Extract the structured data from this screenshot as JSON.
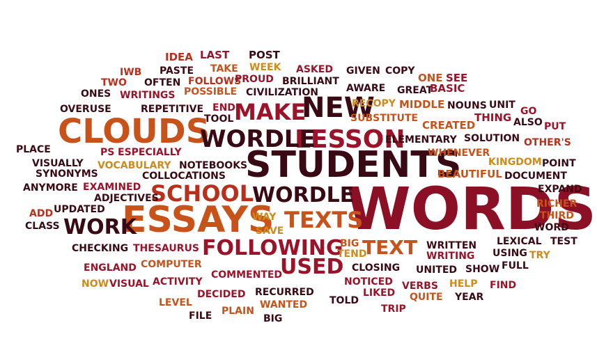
{
  "palette": {
    "dark_maroon": "#3a0a14",
    "maroon": "#6e0f22",
    "crimson": "#9a1328",
    "brick": "#b8301c",
    "burnt_orange": "#c8531a",
    "orange": "#d6701c",
    "gold": "#d08a1a"
  },
  "words": [
    {
      "text": "WORDS",
      "color": "#8b1025"
    },
    {
      "text": "STUDENTS",
      "color": "#3a0a14"
    },
    {
      "text": "ESSAYS",
      "color": "#c8531a"
    },
    {
      "text": "CLOUDS",
      "color": "#c8531a"
    },
    {
      "text": "NEW",
      "color": "#3a0a14"
    },
    {
      "text": "LESSON",
      "color": "#9a1328"
    },
    {
      "text": "WORDLE",
      "color": "#3a0a14"
    },
    {
      "text": "MAKE",
      "color": "#9a1328"
    },
    {
      "text": "SCHOOL",
      "color": "#b8301c"
    },
    {
      "text": "WORDLE",
      "color": "#3a0a14"
    },
    {
      "text": "TEXTS",
      "color": "#c8531a"
    },
    {
      "text": "WORK",
      "color": "#3a0a14"
    },
    {
      "text": "FOLLOWING",
      "color": "#9a1328"
    },
    {
      "text": "TEXT",
      "color": "#c8531a"
    },
    {
      "text": "USED",
      "color": "#9a1328"
    },
    {
      "text": "POST",
      "color": "#3a0a14"
    },
    {
      "text": "IDEA",
      "color": "#b8301c"
    },
    {
      "text": "LAST",
      "color": "#9a1328"
    },
    {
      "text": "WEEK",
      "color": "#d08a1a"
    },
    {
      "text": "IWB",
      "color": "#b8301c"
    },
    {
      "text": "PASTE",
      "color": "#3a0a14"
    },
    {
      "text": "TAKE",
      "color": "#c8531a"
    },
    {
      "text": "ASKED",
      "color": "#9a1328"
    },
    {
      "text": "GIVEN",
      "color": "#3a0a14"
    },
    {
      "text": "COPY",
      "color": "#3a0a14"
    },
    {
      "text": "TWO",
      "color": "#b8301c"
    },
    {
      "text": "OFTEN",
      "color": "#3a0a14"
    },
    {
      "text": "FOLLOWS",
      "color": "#b8301c"
    },
    {
      "text": "PROUD",
      "color": "#9a1328"
    },
    {
      "text": "BRILLIANT",
      "color": "#3a0a14"
    },
    {
      "text": "ONE",
      "color": "#c8531a"
    },
    {
      "text": "SEE",
      "color": "#9a1328"
    },
    {
      "text": "AWARE",
      "color": "#3a0a14"
    },
    {
      "text": "ONES",
      "color": "#3a0a14"
    },
    {
      "text": "WRITINGS",
      "color": "#9a1328"
    },
    {
      "text": "POSSIBLE",
      "color": "#c8531a"
    },
    {
      "text": "CIVILIZATION",
      "color": "#3a0a14"
    },
    {
      "text": "GREAT",
      "color": "#3a0a14"
    },
    {
      "text": "BASIC",
      "color": "#9a1328"
    },
    {
      "text": "OVERUSE",
      "color": "#3a0a14"
    },
    {
      "text": "REPETITIVE",
      "color": "#3a0a14"
    },
    {
      "text": "END",
      "color": "#9a1328"
    },
    {
      "text": "RECOPY",
      "color": "#d08a1a"
    },
    {
      "text": "MIDDLE",
      "color": "#c8531a"
    },
    {
      "text": "NOUNS",
      "color": "#3a0a14"
    },
    {
      "text": "UNIT",
      "color": "#3a0a14"
    },
    {
      "text": "GO",
      "color": "#9a1328"
    },
    {
      "text": "TOOL",
      "color": "#3a0a14"
    },
    {
      "text": "SUBSTITUTE",
      "color": "#c8531a"
    },
    {
      "text": "THING",
      "color": "#9a1328"
    },
    {
      "text": "ALSO",
      "color": "#3a0a14"
    },
    {
      "text": "CREATED",
      "color": "#c8531a"
    },
    {
      "text": "PUT",
      "color": "#9a1328"
    },
    {
      "text": "ELEMENTARY",
      "color": "#3a0a14"
    },
    {
      "text": "SOLUTION",
      "color": "#3a0a14"
    },
    {
      "text": "OTHER'S",
      "color": "#b8301c"
    },
    {
      "text": "PLACE",
      "color": "#3a0a14"
    },
    {
      "text": "PS",
      "color": "#9a1328"
    },
    {
      "text": "ESPECIALLY",
      "color": "#9a1328"
    },
    {
      "text": "WHENEVER",
      "color": "#c8531a"
    },
    {
      "text": "VISUALLY",
      "color": "#3a0a14"
    },
    {
      "text": "VOCABULARY",
      "color": "#d08a1a"
    },
    {
      "text": "NOTEBOOKS",
      "color": "#3a0a14"
    },
    {
      "text": "KINGDOM",
      "color": "#d08a1a"
    },
    {
      "text": "POINT",
      "color": "#3a0a14"
    },
    {
      "text": "SYNONYMS",
      "color": "#3a0a14"
    },
    {
      "text": "COLLOCATIONS",
      "color": "#3a0a14"
    },
    {
      "text": "BEAUTIFUL",
      "color": "#c8531a"
    },
    {
      "text": "DOCUMENT",
      "color": "#3a0a14"
    },
    {
      "text": "ANYMORE",
      "color": "#3a0a14"
    },
    {
      "text": "EXAMINED",
      "color": "#9a1328"
    },
    {
      "text": "EXPAND",
      "color": "#3a0a14"
    },
    {
      "text": "ADJECTIVES",
      "color": "#3a0a14"
    },
    {
      "text": "ADD",
      "color": "#b8301c"
    },
    {
      "text": "UPDATED",
      "color": "#3a0a14"
    },
    {
      "text": "RICHER",
      "color": "#c8531a"
    },
    {
      "text": "WAY",
      "color": "#d08a1a"
    },
    {
      "text": "THIRD",
      "color": "#c8531a"
    },
    {
      "text": "CLASS",
      "color": "#3a0a14"
    },
    {
      "text": "SAVE",
      "color": "#d08a1a"
    },
    {
      "text": "WORD",
      "color": "#3a0a14"
    },
    {
      "text": "BIG",
      "color": "#c8531a"
    },
    {
      "text": "LEXICAL",
      "color": "#3a0a14"
    },
    {
      "text": "TEST",
      "color": "#3a0a14"
    },
    {
      "text": "CHECKING",
      "color": "#3a0a14"
    },
    {
      "text": "THESAURUS",
      "color": "#9a1328"
    },
    {
      "text": "WRITTEN",
      "color": "#3a0a14"
    },
    {
      "text": "TEND",
      "color": "#d08a1a"
    },
    {
      "text": "WRITING",
      "color": "#9a1328"
    },
    {
      "text": "USING",
      "color": "#3a0a14"
    },
    {
      "text": "TRY",
      "color": "#d08a1a"
    },
    {
      "text": "COMPUTER",
      "color": "#c8531a"
    },
    {
      "text": "ENGLAND",
      "color": "#9a1328"
    },
    {
      "text": "CLOSING",
      "color": "#3a0a14"
    },
    {
      "text": "UNITED",
      "color": "#3a0a14"
    },
    {
      "text": "SHOW",
      "color": "#3a0a14"
    },
    {
      "text": "FULL",
      "color": "#3a0a14"
    },
    {
      "text": "COMMENTED",
      "color": "#9a1328"
    },
    {
      "text": "NOW",
      "color": "#d08a1a"
    },
    {
      "text": "VISUAL",
      "color": "#9a1328"
    },
    {
      "text": "ACTIVITY",
      "color": "#9a1328"
    },
    {
      "text": "DECIDED",
      "color": "#9a1328"
    },
    {
      "text": "NOTICED",
      "color": "#9a1328"
    },
    {
      "text": "VERBS",
      "color": "#9a1328"
    },
    {
      "text": "HELP",
      "color": "#d08a1a"
    },
    {
      "text": "FIND",
      "color": "#9a1328"
    },
    {
      "text": "RECURRED",
      "color": "#3a0a14"
    },
    {
      "text": "LIKED",
      "color": "#9a1328"
    },
    {
      "text": "QUITE",
      "color": "#c8531a"
    },
    {
      "text": "YEAR",
      "color": "#3a0a14"
    },
    {
      "text": "LEVEL",
      "color": "#c8531a"
    },
    {
      "text": "WANTED",
      "color": "#c8531a"
    },
    {
      "text": "TOLD",
      "color": "#3a0a14"
    },
    {
      "text": "TRIP",
      "color": "#9a1328"
    },
    {
      "text": "FILE",
      "color": "#3a0a14"
    },
    {
      "text": "PLAIN",
      "color": "#c8531a"
    },
    {
      "text": "BIG",
      "color": "#3a0a14"
    }
  ]
}
